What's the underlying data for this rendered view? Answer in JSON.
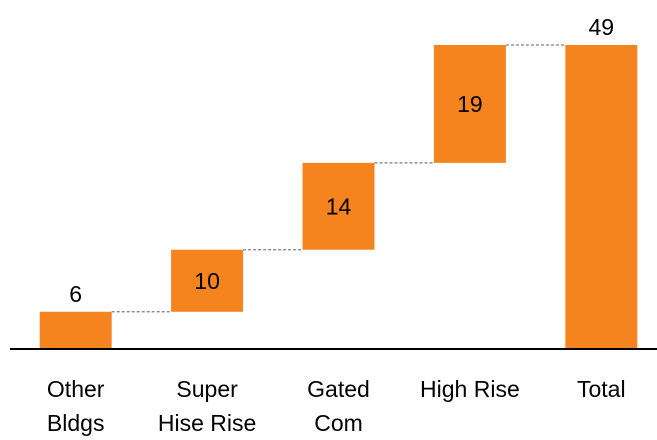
{
  "chart_data": {
    "type": "bar",
    "subtype": "waterfall",
    "categories": [
      [
        "Other",
        "Bldgs"
      ],
      [
        "Super",
        "Hise Rise"
      ],
      [
        "Gated",
        "Com"
      ],
      [
        "High Rise"
      ],
      [
        "Total"
      ]
    ],
    "values": [
      6,
      10,
      14,
      19,
      49
    ],
    "bar_start": [
      0,
      6,
      16,
      30,
      0
    ],
    "bar_end": [
      6,
      16,
      30,
      49,
      49
    ],
    "connectors": true,
    "ylim": [
      0,
      49
    ],
    "grid": false,
    "legend": false,
    "bar_color": "#F5841F",
    "connector_color": "#7F7F7F",
    "axis_color": "#000000"
  }
}
